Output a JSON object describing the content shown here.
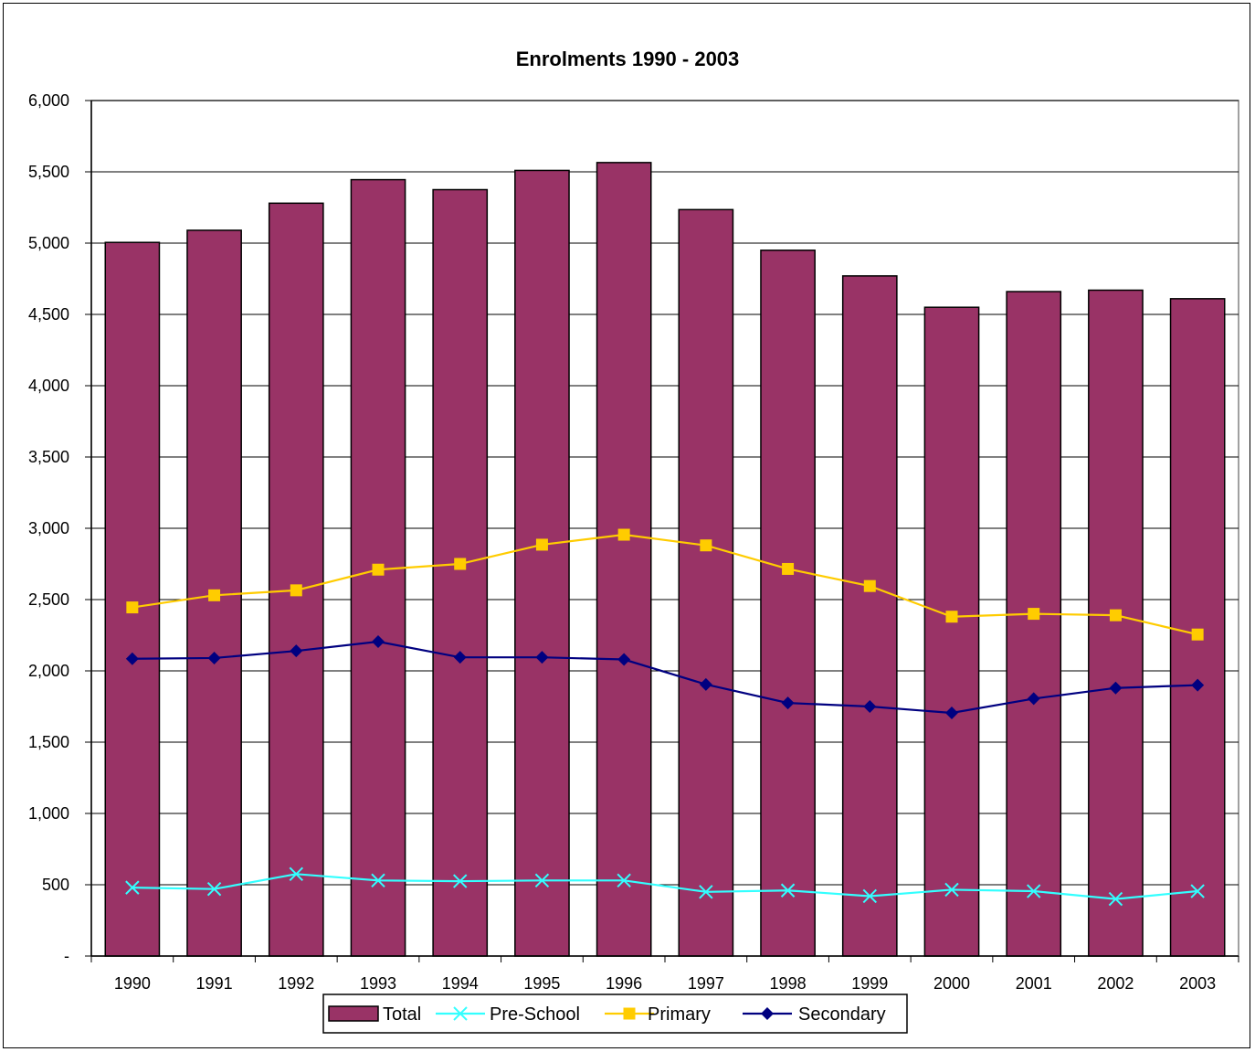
{
  "chart_data": {
    "type": "bar",
    "title": "Enrolments 1990 - 2003",
    "xlabel": "",
    "ylabel": "",
    "ylim": [
      0,
      6000
    ],
    "yticks": [
      0,
      500,
      1000,
      1500,
      2000,
      2500,
      3000,
      3500,
      4000,
      4500,
      5000,
      5500,
      6000
    ],
    "ytick_labels": [
      "-",
      "500",
      "1,000",
      "1,500",
      "2,000",
      "2,500",
      "3,000",
      "3,500",
      "4,000",
      "4,500",
      "5,000",
      "5,500",
      "6,000"
    ],
    "categories": [
      "1990",
      "1991",
      "1992",
      "1993",
      "1994",
      "1995",
      "1996",
      "1997",
      "1998",
      "1999",
      "2000",
      "2001",
      "2002",
      "2003"
    ],
    "grid": true,
    "legend_position": "bottom",
    "series": [
      {
        "name": "Total",
        "kind": "bar",
        "color": "#993366",
        "values": [
          5005,
          5090,
          5280,
          5445,
          5375,
          5510,
          5565,
          5235,
          4950,
          4770,
          4550,
          4660,
          4670,
          4610
        ]
      },
      {
        "name": "Pre-School",
        "kind": "line",
        "marker": "x",
        "color": "#33FFFF",
        "values": [
          480,
          470,
          575,
          530,
          525,
          530,
          530,
          450,
          460,
          420,
          465,
          455,
          400,
          455
        ]
      },
      {
        "name": "Primary",
        "kind": "line",
        "marker": "square",
        "color": "#FFCC00",
        "values": [
          2445,
          2530,
          2565,
          2710,
          2750,
          2885,
          2955,
          2880,
          2715,
          2595,
          2380,
          2400,
          2390,
          2255
        ]
      },
      {
        "name": "Secondary",
        "kind": "line",
        "marker": "diamond",
        "color": "#000080",
        "values": [
          2085,
          2090,
          2140,
          2205,
          2095,
          2095,
          2080,
          1905,
          1775,
          1750,
          1705,
          1805,
          1880,
          1900
        ]
      }
    ]
  }
}
